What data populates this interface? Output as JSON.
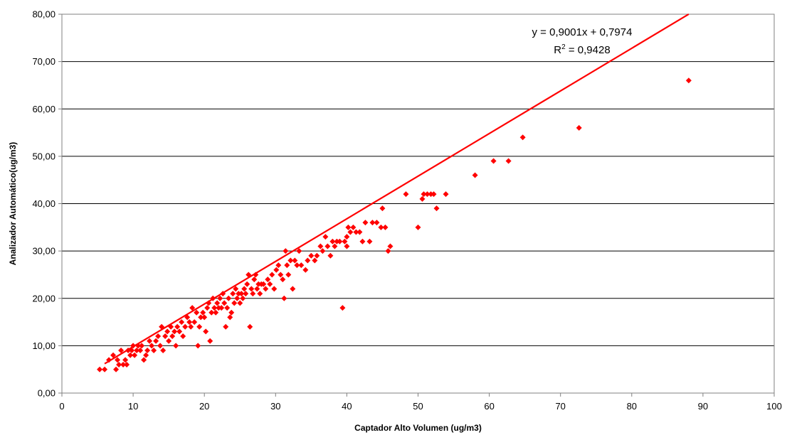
{
  "chart_data": {
    "type": "scatter",
    "xlabel": "Captador Alto Volumen (ug/m3)",
    "ylabel": "Analizador Automático(ug/m3)",
    "xlim": [
      0,
      100
    ],
    "ylim": [
      0,
      80
    ],
    "x_ticks": [
      "0",
      "10",
      "20",
      "30",
      "40",
      "50",
      "60",
      "70",
      "80",
      "90",
      "100"
    ],
    "y_ticks": [
      "0,00",
      "10,00",
      "20,00",
      "30,00",
      "40,00",
      "50,00",
      "60,00",
      "70,00",
      "80,00"
    ],
    "grid": "horizontal",
    "marker_color": "#ff0000",
    "trendline": {
      "slope": 0.9001,
      "intercept": 0.7974,
      "x_range": [
        6,
        88
      ],
      "color": "#ff0000",
      "equation_label": "y = 0,9001x + 0,7974",
      "r2_prefix": "R",
      "r2_sup": "2",
      "r2_value": " = 0,9428"
    },
    "points": [
      [
        5.3,
        5
      ],
      [
        6,
        5
      ],
      [
        6.6,
        7
      ],
      [
        7.2,
        8
      ],
      [
        7.6,
        5
      ],
      [
        7.8,
        7
      ],
      [
        8,
        6
      ],
      [
        8.3,
        9
      ],
      [
        8.6,
        6
      ],
      [
        8.9,
        7
      ],
      [
        9.1,
        6
      ],
      [
        9.3,
        9
      ],
      [
        9.6,
        8
      ],
      [
        9.8,
        9
      ],
      [
        10,
        10
      ],
      [
        10.2,
        8
      ],
      [
        10.5,
        9
      ],
      [
        10.7,
        10
      ],
      [
        11,
        9
      ],
      [
        11.2,
        10
      ],
      [
        11.5,
        7
      ],
      [
        11.8,
        8
      ],
      [
        12,
        9
      ],
      [
        12.3,
        11
      ],
      [
        12.6,
        10
      ],
      [
        12.9,
        9
      ],
      [
        13.2,
        11
      ],
      [
        13.5,
        12
      ],
      [
        13.8,
        10
      ],
      [
        14,
        14
      ],
      [
        14.2,
        9
      ],
      [
        14.5,
        12
      ],
      [
        14.8,
        13
      ],
      [
        15,
        11
      ],
      [
        15.3,
        14
      ],
      [
        15.5,
        12
      ],
      [
        15.8,
        13
      ],
      [
        16,
        10
      ],
      [
        16.2,
        14
      ],
      [
        16.5,
        13
      ],
      [
        16.8,
        15
      ],
      [
        17,
        12
      ],
      [
        17.3,
        14
      ],
      [
        17.6,
        16
      ],
      [
        17.9,
        15
      ],
      [
        18.1,
        14
      ],
      [
        18.3,
        18
      ],
      [
        18.6,
        15
      ],
      [
        18.9,
        17
      ],
      [
        19.1,
        10
      ],
      [
        19.3,
        14
      ],
      [
        19.5,
        16
      ],
      [
        19.8,
        17
      ],
      [
        20,
        16
      ],
      [
        20.2,
        13
      ],
      [
        20.4,
        18
      ],
      [
        20.6,
        19
      ],
      [
        20.8,
        11
      ],
      [
        21,
        17
      ],
      [
        21.2,
        20
      ],
      [
        21.4,
        18
      ],
      [
        21.6,
        17
      ],
      [
        21.8,
        19
      ],
      [
        22,
        18
      ],
      [
        22.2,
        20
      ],
      [
        22.4,
        18
      ],
      [
        22.6,
        21
      ],
      [
        22.8,
        19
      ],
      [
        23,
        14
      ],
      [
        23.2,
        18
      ],
      [
        23.4,
        20
      ],
      [
        23.6,
        16
      ],
      [
        23.8,
        17
      ],
      [
        24,
        21
      ],
      [
        24.2,
        19
      ],
      [
        24.4,
        22
      ],
      [
        24.6,
        20
      ],
      [
        24.8,
        21
      ],
      [
        25,
        19
      ],
      [
        25.2,
        21
      ],
      [
        25.4,
        20
      ],
      [
        25.6,
        22
      ],
      [
        25.8,
        21
      ],
      [
        26,
        23
      ],
      [
        26.2,
        25
      ],
      [
        26.4,
        14
      ],
      [
        26.6,
        22
      ],
      [
        26.8,
        21
      ],
      [
        27,
        24
      ],
      [
        27.2,
        25
      ],
      [
        27.4,
        22
      ],
      [
        27.6,
        23
      ],
      [
        27.8,
        21
      ],
      [
        28,
        23
      ],
      [
        28.3,
        23
      ],
      [
        28.6,
        22
      ],
      [
        28.9,
        24
      ],
      [
        29.2,
        23
      ],
      [
        29.5,
        25
      ],
      [
        29.8,
        22
      ],
      [
        30.1,
        26
      ],
      [
        30.4,
        27
      ],
      [
        30.7,
        25
      ],
      [
        31,
        24
      ],
      [
        31.2,
        20
      ],
      [
        31.4,
        30
      ],
      [
        31.6,
        27
      ],
      [
        31.8,
        25
      ],
      [
        32.1,
        28
      ],
      [
        32.4,
        22
      ],
      [
        32.7,
        28
      ],
      [
        33,
        27
      ],
      [
        33.3,
        30
      ],
      [
        33.6,
        27
      ],
      [
        34.2,
        26
      ],
      [
        34.5,
        28
      ],
      [
        35,
        29
      ],
      [
        35.5,
        28
      ],
      [
        35.8,
        29
      ],
      [
        36.3,
        31
      ],
      [
        36.6,
        30
      ],
      [
        37,
        33
      ],
      [
        37.3,
        31
      ],
      [
        37.7,
        29
      ],
      [
        38,
        32
      ],
      [
        38.3,
        31
      ],
      [
        38.6,
        32
      ],
      [
        39,
        32
      ],
      [
        39.4,
        18
      ],
      [
        39.7,
        32
      ],
      [
        40,
        31
      ],
      [
        40,
        33
      ],
      [
        40.2,
        35
      ],
      [
        40.5,
        34
      ],
      [
        40.9,
        35
      ],
      [
        41.3,
        34
      ],
      [
        41.8,
        34
      ],
      [
        42.2,
        32
      ],
      [
        42.6,
        36
      ],
      [
        43.2,
        32
      ],
      [
        43.6,
        36
      ],
      [
        44.2,
        36
      ],
      [
        44.8,
        35
      ],
      [
        45,
        39
      ],
      [
        45.4,
        35
      ],
      [
        45.8,
        30
      ],
      [
        46.1,
        31
      ],
      [
        48.3,
        42
      ],
      [
        50,
        35
      ],
      [
        50.6,
        41
      ],
      [
        50.8,
        42
      ],
      [
        51.3,
        42
      ],
      [
        51.8,
        42
      ],
      [
        52.2,
        42
      ],
      [
        52.6,
        39
      ],
      [
        53.9,
        42
      ],
      [
        58,
        46
      ],
      [
        60.6,
        49
      ],
      [
        62.7,
        49
      ],
      [
        64.7,
        54
      ],
      [
        72.6,
        56
      ],
      [
        88,
        66
      ]
    ]
  }
}
